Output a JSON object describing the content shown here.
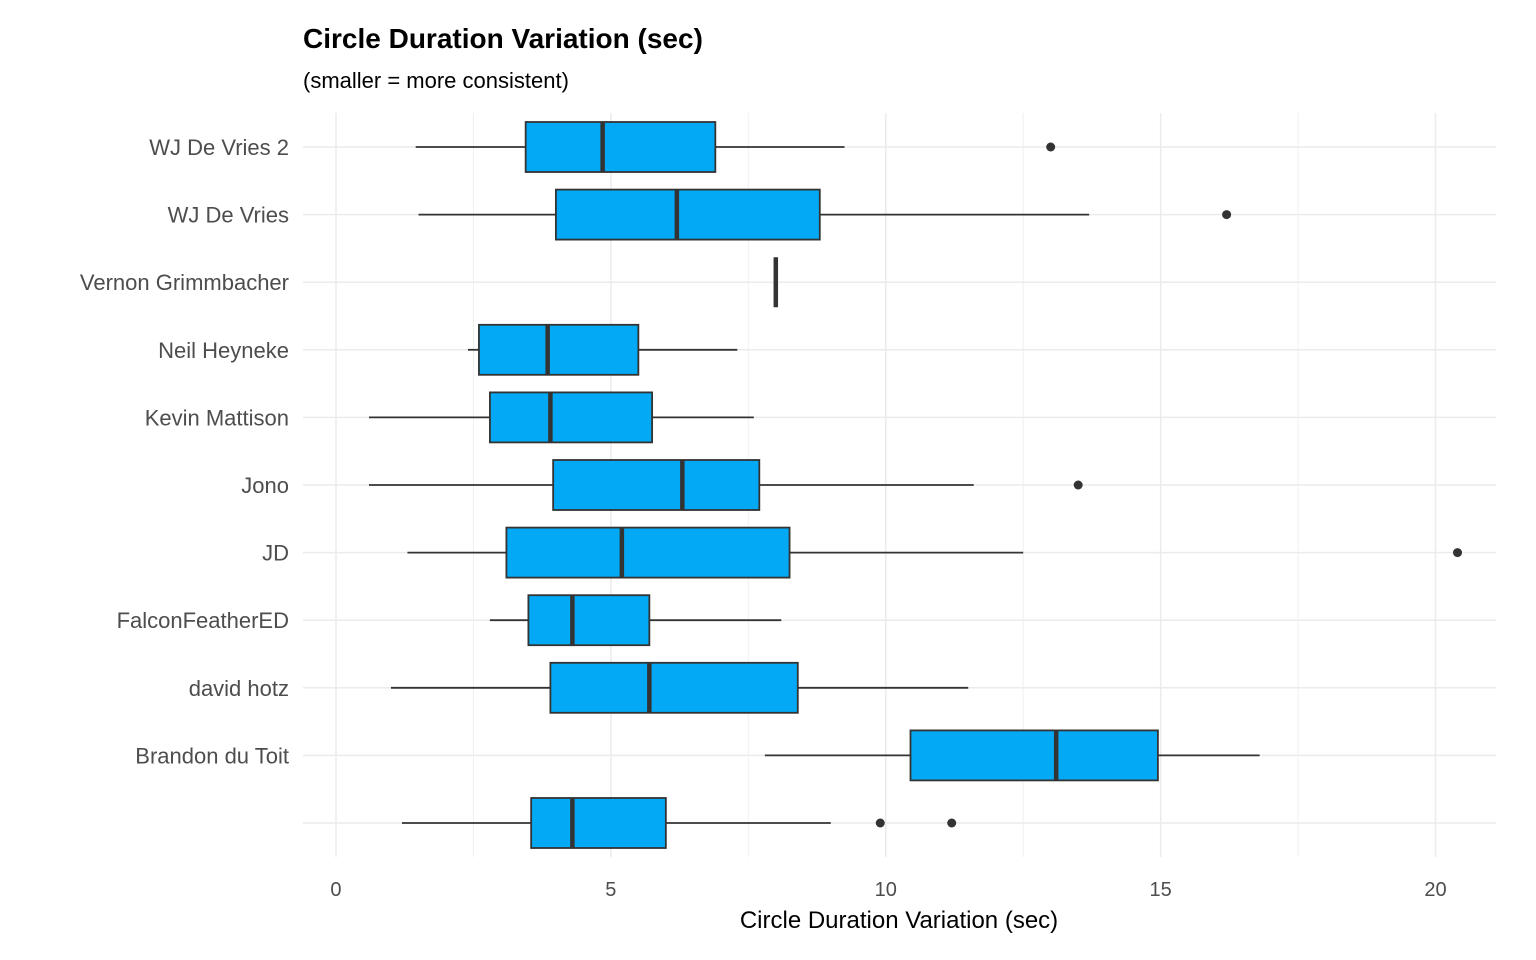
{
  "chart_data": {
    "type": "boxplot",
    "orientation": "horizontal",
    "title": "Circle Duration Variation (sec)",
    "subtitle": "(smaller = more consistent)",
    "xlabel": "Circle Duration Variation (sec)",
    "ylabel": "",
    "xlim": [
      -0.6,
      21.1
    ],
    "x_ticks": [
      0,
      5,
      10,
      15,
      20
    ],
    "grid": true,
    "legend": "none",
    "fill_color": "#03a9f4",
    "stroke_color": "#333333",
    "categories": [
      "WJ De Vries 2",
      "WJ De Vries",
      "Vernon Grimmbacher",
      "Neil Heyneke",
      "Kevin Mattison",
      "Jono",
      "JD",
      "FalconFeatherED",
      "david hotz",
      "Brandon du Toit",
      ""
    ],
    "boxes": [
      {
        "label": "WJ De Vries 2",
        "whisker_low": 1.45,
        "q1": 3.45,
        "median": 4.85,
        "q3": 6.9,
        "whisker_high": 9.25,
        "outliers": [
          13.0
        ]
      },
      {
        "label": "WJ De Vries",
        "whisker_low": 1.5,
        "q1": 4.0,
        "median": 6.2,
        "q3": 8.8,
        "whisker_high": 13.7,
        "outliers": [
          16.2
        ]
      },
      {
        "label": "Vernon Grimmbacher",
        "whisker_low": 8.0,
        "q1": 8.0,
        "median": 8.0,
        "q3": 8.0,
        "whisker_high": 8.0,
        "outliers": []
      },
      {
        "label": "Neil Heyneke",
        "whisker_low": 2.4,
        "q1": 2.6,
        "median": 3.85,
        "q3": 5.5,
        "whisker_high": 7.3,
        "outliers": []
      },
      {
        "label": "Kevin Mattison",
        "whisker_low": 0.6,
        "q1": 2.8,
        "median": 3.9,
        "q3": 5.75,
        "whisker_high": 7.6,
        "outliers": []
      },
      {
        "label": "Jono",
        "whisker_low": 0.6,
        "q1": 3.95,
        "median": 6.3,
        "q3": 7.7,
        "whisker_high": 11.6,
        "outliers": [
          13.5
        ]
      },
      {
        "label": "JD",
        "whisker_low": 1.3,
        "q1": 3.1,
        "median": 5.2,
        "q3": 8.25,
        "whisker_high": 12.5,
        "outliers": [
          20.4
        ]
      },
      {
        "label": "FalconFeatherED",
        "whisker_low": 2.8,
        "q1": 3.5,
        "median": 4.3,
        "q3": 5.7,
        "whisker_high": 8.1,
        "outliers": []
      },
      {
        "label": "david hotz",
        "whisker_low": 1.0,
        "q1": 3.9,
        "median": 5.7,
        "q3": 8.4,
        "whisker_high": 11.5,
        "outliers": []
      },
      {
        "label": "Brandon du Toit",
        "whisker_low": 7.8,
        "q1": 10.45,
        "median": 13.1,
        "q3": 14.95,
        "whisker_high": 16.8,
        "outliers": []
      },
      {
        "label": "",
        "whisker_low": 1.2,
        "q1": 3.55,
        "median": 4.3,
        "q3": 6.0,
        "whisker_high": 9.0,
        "outliers": [
          9.9,
          11.2
        ]
      }
    ]
  }
}
